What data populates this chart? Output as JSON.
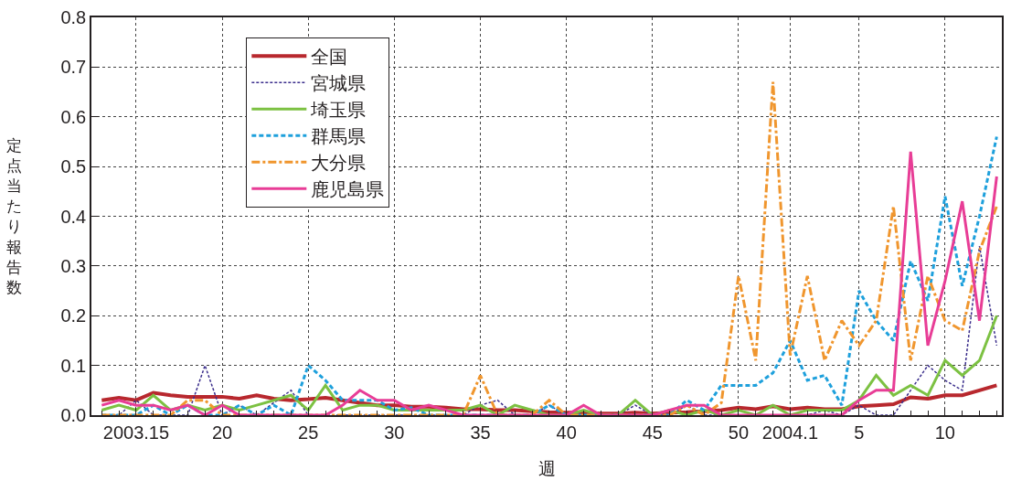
{
  "chart_data": {
    "type": "line",
    "xlabel": "週",
    "ylabel": "定点当たり報告数",
    "categories": [
      null,
      null,
      "2003.15",
      null,
      null,
      null,
      null,
      "20",
      null,
      null,
      null,
      null,
      "25",
      null,
      null,
      null,
      null,
      "30",
      null,
      null,
      null,
      null,
      "35",
      null,
      null,
      null,
      null,
      "40",
      null,
      null,
      null,
      null,
      "45",
      null,
      null,
      null,
      null,
      "50",
      null,
      null,
      "2004.1",
      null,
      null,
      null,
      "5",
      null,
      null,
      null,
      null,
      "10",
      null,
      null,
      null
    ],
    "ylim": [
      0,
      0.8
    ],
    "yticks": [
      {
        "value": 0,
        "label": "0.0"
      },
      0.1,
      0.2,
      0.3,
      0.4,
      0.5,
      0.6,
      0.7,
      0.8
    ],
    "grid": true,
    "legend": "top left",
    "series": [
      {
        "name": "全国",
        "color": "#b8282e",
        "line_style": "solid",
        "values": [
          0.03,
          0.035,
          0.03,
          0.045,
          0.04,
          0.037,
          0.037,
          0.037,
          0.033,
          0.04,
          0.033,
          0.03,
          0.032,
          0.035,
          0.03,
          0.025,
          0.02,
          0.02,
          0.017,
          0.017,
          0.015,
          0.012,
          0.012,
          0.01,
          0.01,
          0.008,
          0.006,
          0.005,
          0.005,
          0.003,
          0.003,
          0.005,
          0.003,
          0.005,
          0.006,
          0.008,
          0.01,
          0.015,
          0.012,
          0.018,
          0.012,
          0.015,
          0.012,
          0.012,
          0.018,
          0.02,
          0.022,
          0.036,
          0.033,
          0.04,
          0.04,
          0.05,
          0.06
        ]
      },
      {
        "name": "宮城県",
        "color": "#3b2e8c",
        "line_style": "dotted",
        "values": [
          0,
          0,
          0.03,
          0,
          0,
          0,
          0.1,
          0,
          0.02,
          0,
          0.025,
          0.05,
          0,
          0,
          0,
          0,
          0,
          0,
          0,
          0,
          0,
          0,
          0.02,
          0.03,
          0,
          0,
          0.02,
          0,
          0,
          0,
          0,
          0.02,
          0,
          0,
          0.02,
          0,
          0,
          0,
          0,
          0,
          0,
          0,
          0.01,
          0,
          0.02,
          0,
          0,
          0.05,
          0.1,
          0.07,
          0.05,
          0.34,
          0.14
        ]
      },
      {
        "name": "埼玉県",
        "color": "#7cc142",
        "line_style": "solid",
        "values": [
          0.01,
          0.02,
          0.01,
          0.04,
          0.01,
          0.02,
          0.01,
          0.02,
          0.01,
          0.02,
          0.03,
          0.04,
          0.01,
          0.06,
          0.01,
          0.02,
          0.02,
          0.01,
          0.01,
          0.01,
          0.01,
          0.01,
          0.02,
          0,
          0.02,
          0.01,
          0,
          0,
          0.01,
          0,
          0,
          0.03,
          0,
          0.01,
          0,
          0.01,
          0,
          0.01,
          0,
          0.02,
          0,
          0.01,
          0.01,
          0.01,
          0.03,
          0.08,
          0.04,
          0.06,
          0.04,
          0.11,
          0.08,
          0.11,
          0.2
        ]
      },
      {
        "name": "群馬県",
        "color": "#1ea0dc",
        "line_style": "dashed",
        "values": [
          0,
          0,
          0,
          0.02,
          0,
          0.02,
          0,
          0,
          0.02,
          0,
          0.02,
          0,
          0.1,
          0.07,
          0.03,
          0.03,
          0.03,
          0.01,
          0.015,
          0,
          0,
          0,
          0,
          0,
          0,
          0,
          0.02,
          0,
          0,
          0,
          0,
          0,
          0,
          0,
          0.03,
          0.01,
          0.06,
          0.06,
          0.06,
          0.085,
          0.15,
          0.07,
          0.08,
          0.02,
          0.25,
          0.19,
          0.15,
          0.31,
          0.23,
          0.44,
          0.26,
          0.4,
          0.56
        ]
      },
      {
        "name": "大分県",
        "color": "#f0962e",
        "line_style": "dashdot",
        "values": [
          0,
          0,
          0,
          0,
          0,
          0.03,
          0.03,
          0,
          0,
          0,
          0,
          0,
          0,
          0,
          0,
          0,
          0,
          0,
          0,
          0,
          0,
          0,
          0.08,
          0,
          0,
          0,
          0.03,
          0,
          0,
          0,
          0,
          0,
          0,
          0,
          0.02,
          0,
          0.025,
          0.28,
          0.11,
          0.67,
          0.12,
          0.28,
          0.11,
          0.19,
          0.14,
          0.19,
          0.42,
          0.11,
          0.28,
          0.19,
          0.17,
          0.33,
          0.42
        ]
      },
      {
        "name": "鹿児島県",
        "color": "#e83d96",
        "line_style": "solid",
        "values": [
          0.02,
          0.03,
          0.02,
          0.02,
          0.01,
          0.02,
          0,
          0.02,
          0,
          0,
          0,
          0,
          0,
          0,
          0.02,
          0.05,
          0.03,
          0.03,
          0.01,
          0.02,
          0.01,
          0,
          0,
          0,
          0,
          0,
          0,
          0,
          0.02,
          0,
          0,
          0,
          0,
          0.01,
          0.02,
          0.02,
          0,
          0,
          0,
          0,
          0,
          0,
          0,
          0,
          0.03,
          0.05,
          0.05,
          0.53,
          0.14,
          0.27,
          0.43,
          0.19,
          0.48
        ]
      }
    ]
  }
}
